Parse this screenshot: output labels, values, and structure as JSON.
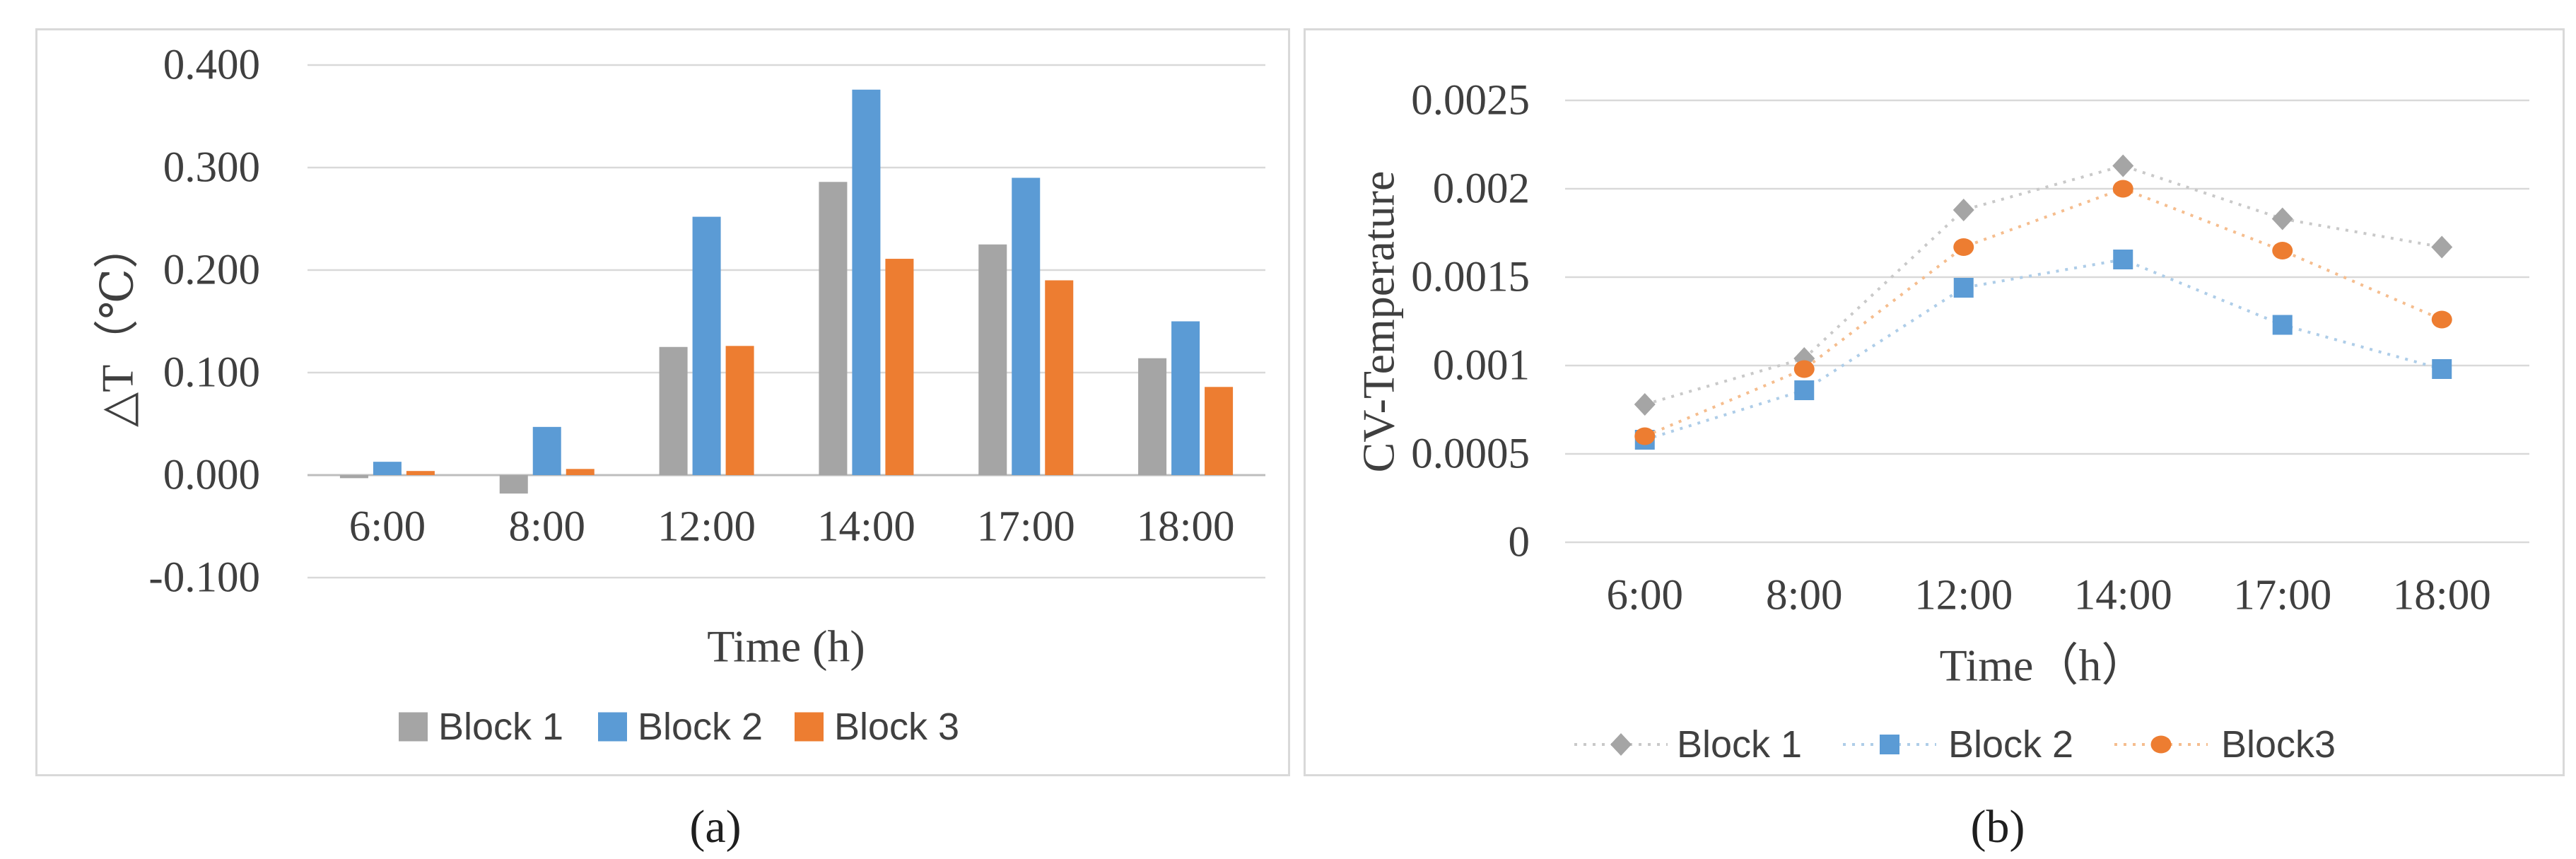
{
  "figure": {
    "captions": {
      "a": "(a)",
      "b": "(b)"
    },
    "background_color": "#ffffff",
    "panel_border_color": "#d9d9d9",
    "grid_color": "#d9d9d9",
    "text_color": "#3f3f3f"
  },
  "chart_data": [
    {
      "id": "a",
      "type": "bar",
      "title": "",
      "categories": [
        "6:00",
        "8:00",
        "12:00",
        "14:00",
        "17:00",
        "18:00"
      ],
      "series": [
        {
          "name": "Block 1",
          "color": "#a5a5a5",
          "values": [
            -0.003,
            -0.018,
            0.125,
            0.286,
            0.225,
            0.114
          ]
        },
        {
          "name": "Block 2",
          "color": "#5b9bd5",
          "values": [
            0.013,
            0.047,
            0.252,
            0.376,
            0.29,
            0.15
          ]
        },
        {
          "name": "Block 3",
          "color": "#ed7d31",
          "values": [
            0.004,
            0.006,
            0.126,
            0.211,
            0.19,
            0.086
          ]
        }
      ],
      "xlabel": "Time (h)",
      "ylabel": "△T（℃）",
      "ylim": [
        -0.1,
        0.4
      ],
      "yticks": [
        {
          "v": 0.4,
          "label": "0.400"
        },
        {
          "v": 0.3,
          "label": "0.300"
        },
        {
          "v": 0.2,
          "label": "0.200"
        },
        {
          "v": 0.1,
          "label": "0.100"
        },
        {
          "v": 0.0,
          "label": "0.000"
        },
        {
          "v": -0.1,
          "label": "-0.100"
        }
      ],
      "grid": true,
      "legend_position": "bottom"
    },
    {
      "id": "b",
      "type": "line",
      "title": "",
      "categories": [
        "6:00",
        "8:00",
        "12:00",
        "14:00",
        "17:00",
        "18:00"
      ],
      "series": [
        {
          "name": "Block 1",
          "color": "#a5a5a5",
          "line_color": "#c9c9c9",
          "marker": "diamond",
          "values": [
            0.00078,
            0.00104,
            0.00188,
            0.00213,
            0.00183,
            0.00167
          ]
        },
        {
          "name": "Block 2",
          "color": "#5b9bd5",
          "line_color": "#aecde8",
          "marker": "square",
          "values": [
            0.00058,
            0.00086,
            0.00144,
            0.0016,
            0.00123,
            0.00098
          ]
        },
        {
          "name": "Block3",
          "color": "#ed7d31",
          "line_color": "#f5bd8e",
          "marker": "circle",
          "values": [
            0.0006,
            0.00098,
            0.00167,
            0.002,
            0.00165,
            0.00126
          ]
        }
      ],
      "xlabel": "Time（h）",
      "ylabel": "CV-Temperature",
      "ylim": [
        0,
        0.0025
      ],
      "yticks": [
        {
          "v": 0.0025,
          "label": "0.0025"
        },
        {
          "v": 0.002,
          "label": "0.002"
        },
        {
          "v": 0.0015,
          "label": "0.0015"
        },
        {
          "v": 0.001,
          "label": "0.001"
        },
        {
          "v": 0.0005,
          "label": "0.0005"
        },
        {
          "v": 0,
          "label": "0"
        }
      ],
      "line_style": "dotted",
      "grid": true,
      "legend_position": "bottom"
    }
  ]
}
